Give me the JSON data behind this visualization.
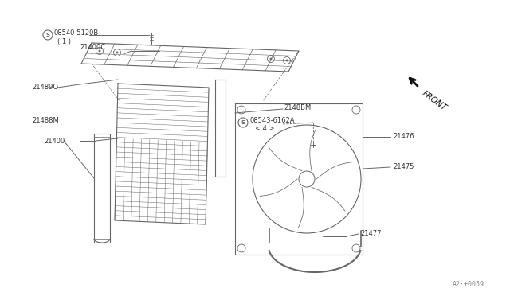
{
  "bg_color": "#ffffff",
  "line_color": "#666666",
  "text_color": "#333333",
  "fig_width": 6.4,
  "fig_height": 3.72,
  "watermark": "A2·±0059",
  "labels": {
    "s08540": "08540-5120B",
    "s08540_sub": "( 1 )",
    "s21400c": "21400C",
    "s21489o": "21489O",
    "s21400": "21400",
    "s2148bm": "2148BM",
    "s21488m": "21488M",
    "s08543": "08543-6162A",
    "s08543_sub": "< 4 >",
    "s21476": "21476",
    "s21475": "21475",
    "s21477": "21477",
    "front": "FRONT"
  }
}
